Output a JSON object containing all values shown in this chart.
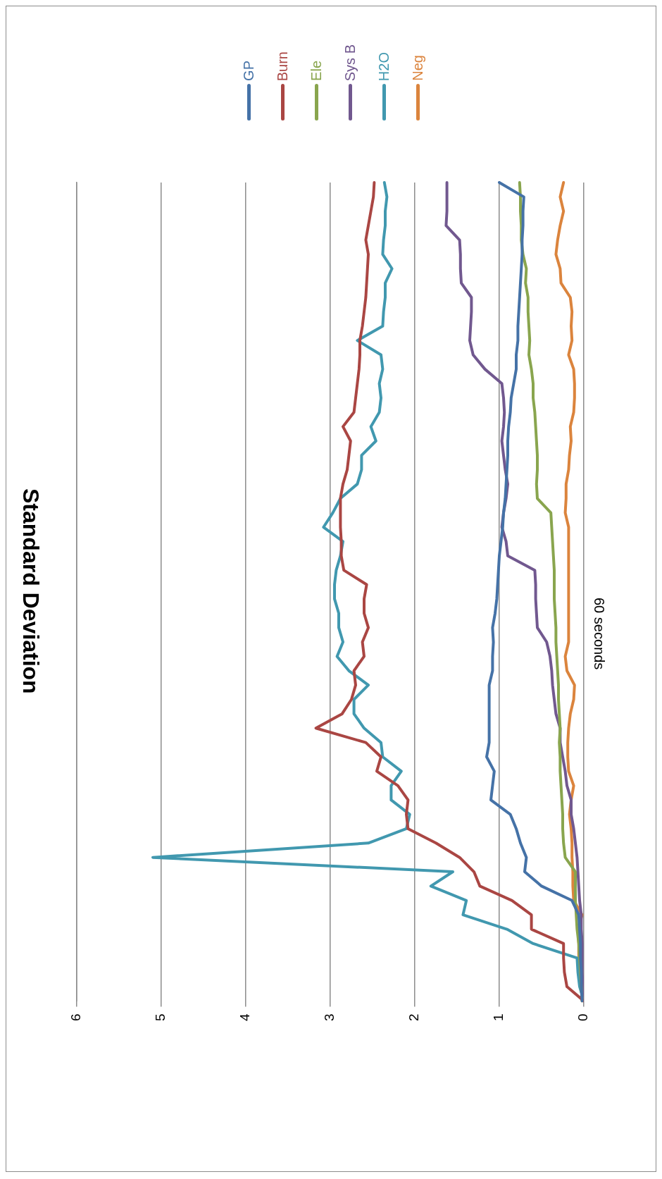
{
  "chart_data": {
    "type": "line",
    "title": "Standard Deviation",
    "ylabel": "60 seconds",
    "orientation": "horizontal",
    "categories": [
      null,
      null,
      null,
      null,
      null,
      null,
      null,
      null,
      null,
      null,
      null,
      null,
      null,
      null,
      null,
      null,
      null,
      null,
      null,
      null,
      null,
      null,
      null,
      null,
      null,
      null,
      null,
      null,
      null,
      null,
      null,
      null,
      null,
      null,
      null,
      null,
      null,
      null,
      null,
      null,
      null,
      null,
      null,
      null,
      null,
      null,
      null,
      null,
      null,
      null,
      null,
      null,
      null,
      null,
      null,
      null,
      null,
      null
    ],
    "xlim": [
      6,
      0
    ],
    "xticks": [
      0,
      1,
      2,
      3,
      4,
      5,
      6
    ],
    "grid": "x",
    "legend": "top",
    "marker": "none",
    "line_style": "solid",
    "series": [
      {
        "name": "GP",
        "color": "#4572a7",
        "values": [
          1.0,
          0.71,
          0.72,
          0.72,
          0.73,
          0.73,
          0.74,
          0.75,
          0.76,
          0.77,
          0.78,
          0.78,
          0.8,
          0.8,
          0.83,
          0.86,
          0.87,
          0.89,
          0.9,
          0.9,
          0.91,
          0.92,
          0.93,
          0.95,
          0.96,
          0.98,
          1.0,
          1.01,
          1.02,
          1.03,
          1.05,
          1.08,
          1.07,
          1.08,
          1.08,
          1.12,
          1.12,
          1.12,
          1.12,
          1.12,
          1.15,
          1.06,
          1.08,
          1.1,
          0.87,
          0.8,
          0.75,
          0.68,
          0.7,
          0.5,
          0.14,
          0.06,
          0.05,
          0.04,
          0.04,
          0.03,
          0.03,
          0.02
        ]
      },
      {
        "name": "Burn",
        "color": "#aa4643",
        "values": [
          2.48,
          2.49,
          2.52,
          2.55,
          2.58,
          2.55,
          2.56,
          2.57,
          2.58,
          2.6,
          2.62,
          2.65,
          2.65,
          2.66,
          2.68,
          2.7,
          2.72,
          2.85,
          2.76,
          2.78,
          2.8,
          2.85,
          2.88,
          2.88,
          2.88,
          2.87,
          2.87,
          2.84,
          2.57,
          2.6,
          2.6,
          2.55,
          2.62,
          2.6,
          2.72,
          2.7,
          2.75,
          2.86,
          3.17,
          2.58,
          2.4,
          2.45,
          2.2,
          2.08,
          2.1,
          2.08,
          1.75,
          1.47,
          1.3,
          1.23,
          0.85,
          0.62,
          0.62,
          0.24,
          0.24,
          0.23,
          0.2,
          0
        ]
      },
      {
        "name": "Ele",
        "color": "#89a54e",
        "values": [
          0.76,
          0.75,
          0.75,
          0.74,
          0.74,
          0.72,
          0.68,
          0.69,
          0.66,
          0.66,
          0.65,
          0.64,
          0.65,
          0.62,
          0.6,
          0.6,
          0.58,
          0.57,
          0.56,
          0.55,
          0.55,
          0.56,
          0.55,
          0.39,
          0.38,
          0.37,
          0.36,
          0.35,
          0.35,
          0.35,
          0.34,
          0.33,
          0.33,
          0.32,
          0.31,
          0.3,
          0.3,
          0.29,
          0.28,
          0.29,
          0.28,
          0.28,
          0.27,
          0.26,
          0.25,
          0.25,
          0.24,
          0.22,
          0.1,
          0.1,
          0.1,
          0.09,
          0.08,
          0.06,
          0.05,
          0.04,
          0.03,
          0.02
        ]
      },
      {
        "name": "Sys B",
        "color": "#71588f",
        "values": [
          1.62,
          1.62,
          1.62,
          1.63,
          1.47,
          1.46,
          1.46,
          1.45,
          1.33,
          1.33,
          1.34,
          1.35,
          1.31,
          1.17,
          0.97,
          0.95,
          0.94,
          0.95,
          0.97,
          0.95,
          0.93,
          0.9,
          0.92,
          0.95,
          0.97,
          0.92,
          0.9,
          0.58,
          0.57,
          0.57,
          0.56,
          0.55,
          0.44,
          0.4,
          0.38,
          0.37,
          0.35,
          0.33,
          0.28,
          0.28,
          0.25,
          0.22,
          0.2,
          0.15,
          0.15,
          0.12,
          0.1,
          0.08,
          0.07,
          0.06,
          0.05,
          0.03,
          0.03,
          0.02,
          0.02,
          0.02,
          0.01,
          0
        ]
      },
      {
        "name": "H2O",
        "color": "#4198af",
        "values": [
          2.36,
          2.33,
          2.35,
          2.35,
          2.37,
          2.38,
          2.27,
          2.35,
          2.35,
          2.37,
          2.38,
          2.68,
          2.4,
          2.38,
          2.42,
          2.4,
          2.42,
          2.52,
          2.46,
          2.63,
          2.63,
          2.68,
          2.88,
          2.97,
          3.08,
          2.85,
          2.88,
          2.93,
          2.95,
          2.95,
          2.9,
          2.9,
          2.85,
          2.92,
          2.78,
          2.55,
          2.72,
          2.72,
          2.6,
          2.4,
          2.38,
          2.16,
          2.28,
          2.28,
          2.06,
          2.1,
          2.55,
          5.1,
          1.55,
          1.81,
          1.39,
          1.43,
          0.91,
          0.6,
          0.08,
          0.07,
          0.05,
          0
        ]
      },
      {
        "name": "Neg",
        "color": "#db843d",
        "values": [
          0.24,
          0.28,
          0.24,
          0.28,
          0.31,
          0.33,
          0.28,
          0.27,
          0.16,
          0.14,
          0.15,
          0.14,
          0.18,
          0.12,
          0.11,
          0.11,
          0.12,
          0.16,
          0.15,
          0.17,
          0.18,
          0.21,
          0.21,
          0.22,
          0.18,
          0.18,
          0.18,
          0.18,
          0.18,
          0.18,
          0.18,
          0.18,
          0.18,
          0.22,
          0.2,
          0.11,
          0.12,
          0.16,
          0.18,
          0.19,
          0.19,
          0.18,
          0.12,
          0.15,
          0.17,
          0.15,
          0.14,
          0.14,
          0.13,
          0.13,
          0.12,
          0.02,
          0.07,
          0.06,
          0.06,
          0.05,
          0.03,
          0.02
        ]
      }
    ]
  }
}
